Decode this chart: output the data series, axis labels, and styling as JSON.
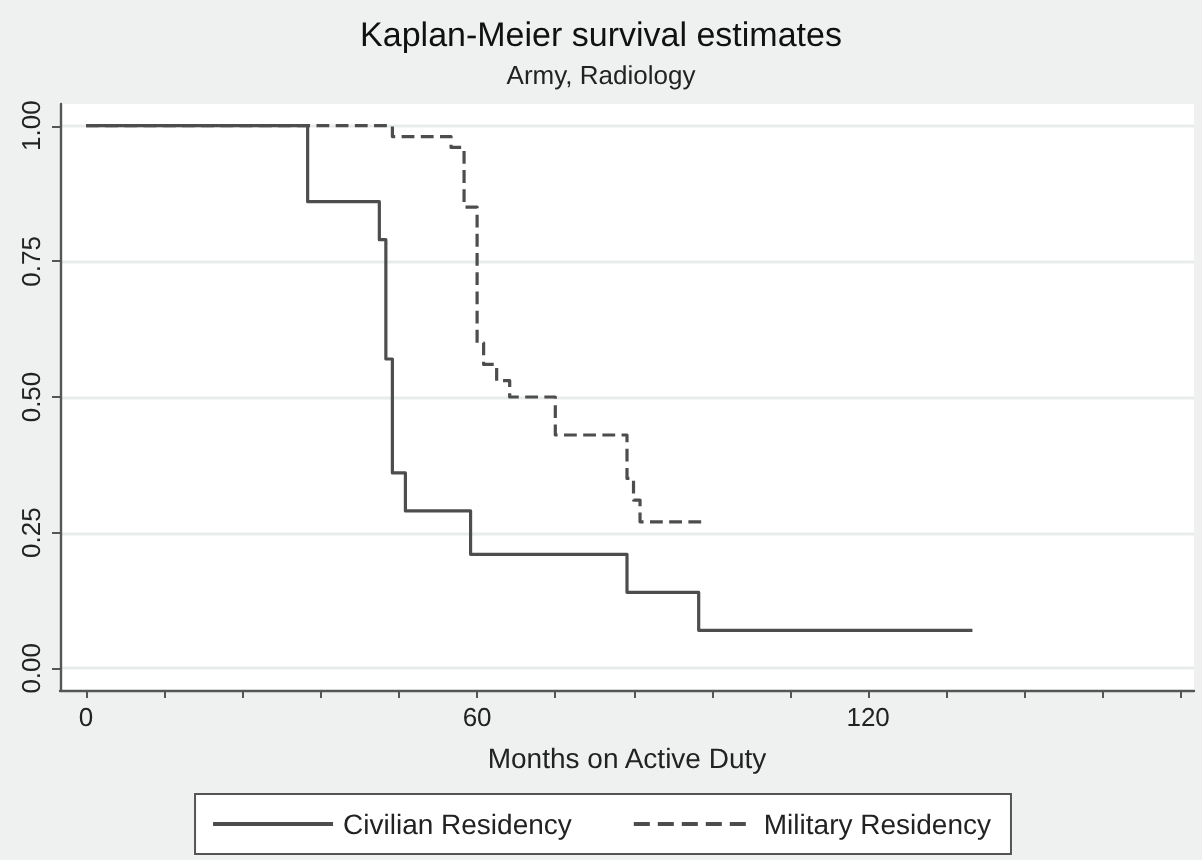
{
  "chart_data": {
    "type": "step",
    "title": "Kaplan-Meier survival estimates",
    "subtitle": "Army, Radiology",
    "xlabel": "Months on Active Duty",
    "series": [
      {
        "name": "Civilian Residency",
        "color": "#4d4d4d",
        "line_style": "solid",
        "x": [
          0,
          34,
          45,
          46,
          47,
          49,
          59,
          83,
          94,
          136
        ],
        "values": [
          1,
          0.86,
          0.79,
          0.57,
          0.36,
          0.29,
          0.21,
          0.14,
          0.07,
          0.07
        ]
      },
      {
        "name": "Military Residency",
        "color": "#4d4d4d",
        "line_style": "dashed",
        "x": [
          0,
          47,
          56,
          58,
          60,
          61,
          63,
          65,
          72,
          83,
          84,
          85,
          95
        ],
        "values": [
          1,
          0.98,
          0.96,
          0.85,
          0.6,
          0.56,
          0.53,
          0.5,
          0.43,
          0.35,
          0.31,
          0.27,
          0.27
        ]
      }
    ],
    "xlim": [
      -4,
      170
    ],
    "xticks": [
      0,
      {
        "value": 12,
        "label": null
      },
      {
        "value": 24,
        "label": null
      },
      {
        "value": 36,
        "label": null
      },
      {
        "value": 48,
        "label": null
      },
      60,
      {
        "value": 72,
        "label": null
      },
      {
        "value": 84,
        "label": null
      },
      {
        "value": 96,
        "label": null
      },
      {
        "value": 108,
        "label": null
      },
      120,
      {
        "value": 132,
        "label": null
      },
      {
        "value": 144,
        "label": null
      },
      {
        "value": 156,
        "label": null
      },
      {
        "value": 168,
        "label": null
      }
    ],
    "ylim": [
      -0.04,
      1.04
    ],
    "yticks": [
      {
        "value": 0,
        "label": "0.00"
      },
      {
        "value": 0.25,
        "label": "0.25"
      },
      {
        "value": 0.5,
        "label": "0.50"
      },
      {
        "value": 0.75,
        "label": "0.75"
      },
      {
        "value": 1,
        "label": "1.00"
      }
    ],
    "grid": "y",
    "legend": "bottom"
  }
}
